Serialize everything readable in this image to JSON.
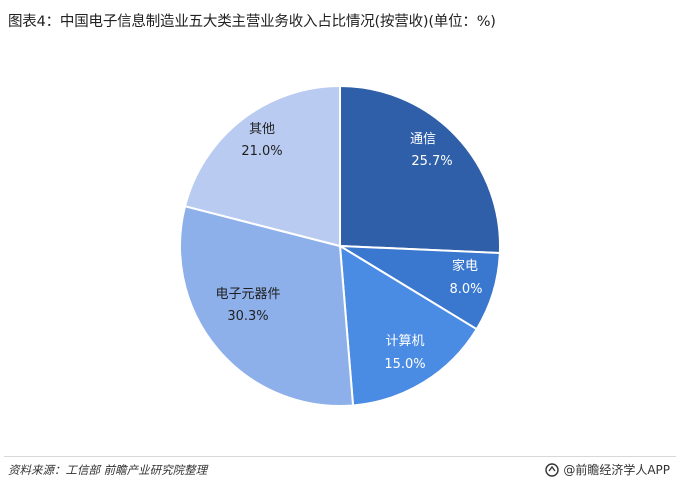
{
  "title": "图表4：中国电子信息制造业五大类主营业务收入占比情况(按营收)(单位：%)",
  "chart_data": {
    "type": "pie",
    "title": "图表4：中国电子信息制造业五大类主营业务收入占比情况(按营收)(单位：%)",
    "unit": "%",
    "slices": [
      {
        "label": "通信",
        "value": 25.7,
        "value_text": "25.7%",
        "color": "#2e5fa8"
      },
      {
        "label": "家电",
        "value": 8.0,
        "value_text": "8.0%",
        "color": "#3a77cf"
      },
      {
        "label": "计算机",
        "value": 15.0,
        "value_text": "15.0%",
        "color": "#4a8be3"
      },
      {
        "label": "电子元器件",
        "value": 30.3,
        "value_text": "30.3%",
        "color": "#8eb0ea"
      },
      {
        "label": "其他",
        "value": 21.0,
        "value_text": "21.0%",
        "color": "#b9cbf0"
      }
    ],
    "start_angle_deg": 0,
    "direction": "clockwise"
  },
  "footer": {
    "source": "资料来源：工信部 前瞻产业研究院整理",
    "brand": "@前瞻经济学人APP"
  }
}
